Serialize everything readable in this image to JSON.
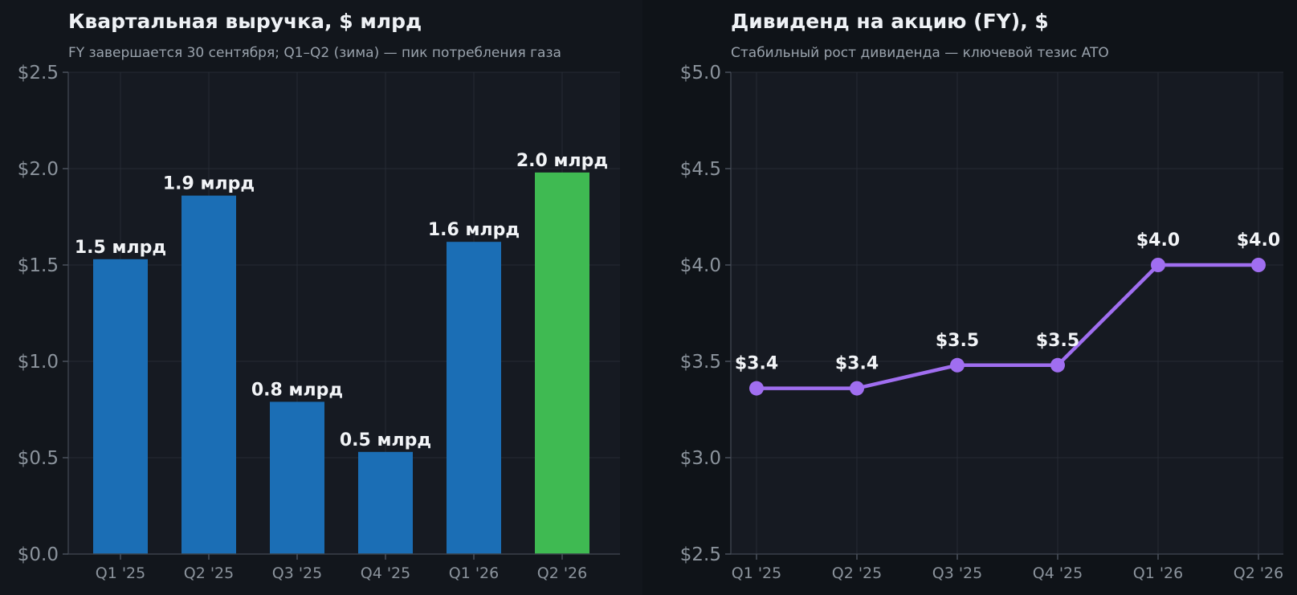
{
  "chart_data": [
    {
      "type": "bar",
      "title": "Квартальная выручка, $ млрд",
      "subtitle": "FY завершается 30 сентября; Q1–Q2 (зима) — пик потребления газа",
      "categories": [
        "Q1 '25",
        "Q2 '25",
        "Q3 '25",
        "Q4 '25",
        "Q1 '26",
        "Q2 '26"
      ],
      "values": [
        1.53,
        1.86,
        0.79,
        0.53,
        1.62,
        1.98
      ],
      "data_labels": [
        "1.5 млрд",
        "1.9 млрд",
        "0.8 млрд",
        "0.5 млрд",
        "1.6 млрд",
        "2.0 млрд"
      ],
      "bar_colors": [
        "#1b6eb5",
        "#1b6eb5",
        "#1b6eb5",
        "#1b6eb5",
        "#1b6eb5",
        "#3fba52"
      ],
      "ylim": [
        0,
        2.5
      ],
      "yticks": [
        0,
        0.5,
        1.0,
        1.5,
        2.0,
        2.5
      ],
      "ytick_labels": [
        "$0.0",
        "$0.5",
        "$1.0",
        "$1.5",
        "$2.0",
        "$2.5"
      ],
      "grid": true
    },
    {
      "type": "line",
      "title": "Дивиденд на акцию (FY), $",
      "subtitle": "Стабильный рост дивиденда — ключевой тезис ATO",
      "categories": [
        "Q1 '25",
        "Q2 '25",
        "Q3 '25",
        "Q4 '25",
        "Q1 '26",
        "Q2 '26"
      ],
      "values": [
        3.36,
        3.36,
        3.48,
        3.48,
        4.0,
        4.0
      ],
      "data_labels": [
        "$3.4",
        "$3.4",
        "$3.5",
        "$3.5",
        "$4.0",
        "$4.0"
      ],
      "line_color": "#a06ef0",
      "ylim": [
        2.5,
        5.0
      ],
      "yticks": [
        2.5,
        3.0,
        3.5,
        4.0,
        4.5,
        5.0
      ],
      "ytick_labels": [
        "$2.5",
        "$3.0",
        "$3.5",
        "$4.0",
        "$4.5",
        "$5.0"
      ],
      "grid": true
    }
  ]
}
